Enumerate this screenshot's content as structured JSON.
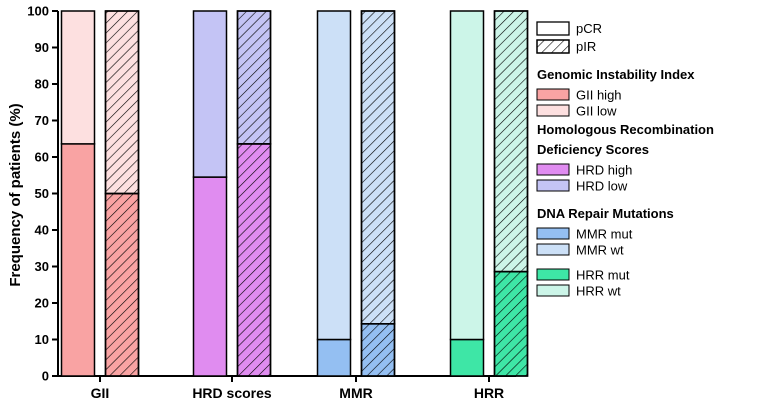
{
  "chart_data": {
    "type": "bar",
    "stacked": true,
    "ylabel": "Frequency of patients (%)",
    "ylim": [
      0,
      100
    ],
    "yticks": [
      0,
      10,
      20,
      30,
      40,
      50,
      60,
      70,
      80,
      90,
      100
    ],
    "groups": [
      {
        "category": "GII",
        "bars": [
          {
            "response": "pCR",
            "bottom_name": "GII high",
            "bottom": 63.6,
            "top_name": "GII low",
            "top": 36.4
          },
          {
            "response": "pIR",
            "bottom_name": "GII high",
            "bottom": 50.0,
            "top_name": "GII low",
            "top": 50.0
          }
        ]
      },
      {
        "category": "HRD scores",
        "bars": [
          {
            "response": "pCR",
            "bottom_name": "HRD high",
            "bottom": 54.5,
            "top_name": "HRD low",
            "top": 45.5
          },
          {
            "response": "pIR",
            "bottom_name": "HRD high",
            "bottom": 63.6,
            "top_name": "HRD low",
            "top": 36.4
          }
        ]
      },
      {
        "category": "MMR",
        "bars": [
          {
            "response": "pCR",
            "bottom_name": "MMR mut",
            "bottom": 10.0,
            "top_name": "MMR wt",
            "top": 90.0
          },
          {
            "response": "pIR",
            "bottom_name": "MMR mut",
            "bottom": 14.3,
            "top_name": "MMR wt",
            "top": 85.7
          }
        ]
      },
      {
        "category": "HRR",
        "bars": [
          {
            "response": "pCR",
            "bottom_name": "HRR mut",
            "bottom": 10.0,
            "top_name": "HRR wt",
            "top": 90.0
          },
          {
            "response": "pIR",
            "bottom_name": "HRR mut",
            "bottom": 28.6,
            "top_name": "HRR wt",
            "top": 71.4
          }
        ]
      }
    ],
    "colors": {
      "GII high": "#f9a3a3",
      "GII low": "#fde0e0",
      "HRD high": "#e08cf0",
      "HRD low": "#c4c4f5",
      "MMR mut": "#94bff2",
      "MMR wt": "#cce0f7",
      "HRR mut": "#3ee6a6",
      "HRR wt": "#ccf5e8"
    },
    "legend": {
      "position": "right",
      "pattern_items": [
        {
          "label": "pCR",
          "hatched": false
        },
        {
          "label": "pIR",
          "hatched": true
        }
      ],
      "sections": [
        {
          "title_lines": [
            "Genomic Instability Index"
          ],
          "items": [
            "GII high",
            "GII low"
          ]
        },
        {
          "title_lines": [
            "Homologous Recombination",
            "Deficiency Scores"
          ],
          "items": [
            "HRD high",
            "HRD low"
          ]
        },
        {
          "title_lines": [
            "DNA Repair Mutations"
          ],
          "items": [
            "MMR mut",
            "MMR wt",
            "HRR mut",
            "HRR wt"
          ]
        }
      ]
    }
  }
}
